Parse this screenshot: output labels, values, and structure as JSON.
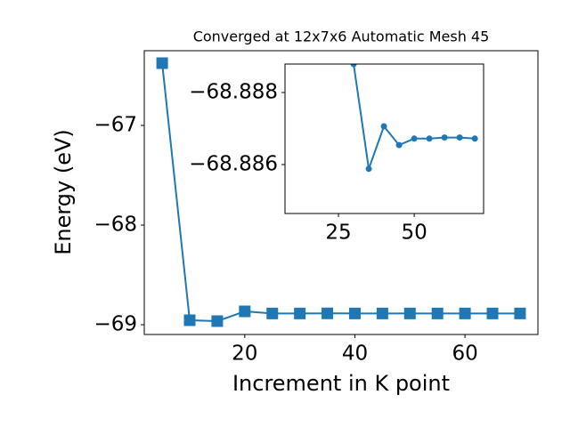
{
  "chart_data": [
    {
      "type": "line",
      "title": "Converged at 12x7x6 Automatic Mesh 45",
      "x_label": "Increment in K point",
      "y_label": "Energy (eV)",
      "marker": "square",
      "series": [
        {
          "color": "#1f77b4",
          "x": [
            5,
            10,
            15,
            20,
            25,
            30,
            35,
            40,
            45,
            50,
            55,
            60,
            65,
            70
          ],
          "values": [
            -66.375,
            -68.955,
            -68.964,
            -68.866,
            -68.887,
            -68.887,
            -68.886,
            -68.887,
            -68.887,
            -68.887,
            -68.887,
            -68.887,
            -68.887,
            -68.887
          ]
        }
      ],
      "xlim": [
        1.75,
        73.25
      ],
      "ylim": [
        -69.098,
        -66.25
      ],
      "xticks": [
        20,
        40,
        60
      ],
      "yticks": [
        {
          "value": -69,
          "label": "−69"
        },
        {
          "value": -68,
          "label": "−68"
        },
        {
          "value": -67,
          "label": "−67"
        }
      ]
    },
    {
      "type": "line",
      "marker": "circle",
      "series": [
        {
          "color": "#1f77b4",
          "x": [
            30,
            35,
            40,
            45,
            50,
            55,
            60,
            65,
            70
          ],
          "values": [
            -68.88879,
            -68.88588,
            -68.88706,
            -68.88654,
            -68.88672,
            -68.88672,
            -68.88675,
            -68.88675,
            -68.88672
          ]
        }
      ],
      "xlim": [
        7.35,
        72.9
      ],
      "ylim": [
        -68.88464,
        -68.88879
      ],
      "xticks": [
        25,
        50
      ],
      "yticks": [
        {
          "value": -68.888,
          "label": "−68.888"
        },
        {
          "value": -68.886,
          "label": "−68.886"
        }
      ]
    }
  ]
}
